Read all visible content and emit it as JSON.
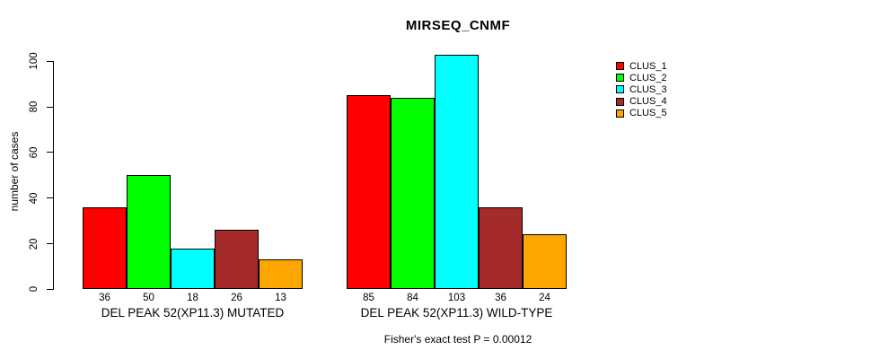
{
  "chart_data": {
    "type": "bar",
    "title": "MIRSEQ_CNMF",
    "xlabel": "",
    "ylabel": "number of cases",
    "ylim": [
      0,
      100
    ],
    "yticks": [
      0,
      20,
      40,
      60,
      80,
      100
    ],
    "grid": false,
    "legend_position": "right",
    "bar_border_color": "#000000",
    "series": [
      {
        "name": "CLUS_1",
        "color": "#ff0000"
      },
      {
        "name": "CLUS_2",
        "color": "#00ff00"
      },
      {
        "name": "CLUS_3",
        "color": "#00ffff"
      },
      {
        "name": "CLUS_4",
        "color": "#a52a2a"
      },
      {
        "name": "CLUS_5",
        "color": "#ffa500"
      }
    ],
    "groups": [
      {
        "label": "DEL PEAK 52(XP11.3) MUTATED",
        "values": [
          36,
          50,
          18,
          26,
          13
        ]
      },
      {
        "label": "DEL PEAK 52(XP11.3) WILD-TYPE",
        "values": [
          85,
          84,
          103,
          36,
          24
        ]
      }
    ],
    "annotation": "Fisher's exact test P = 0.00012"
  }
}
